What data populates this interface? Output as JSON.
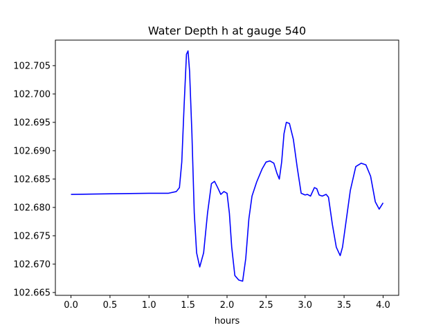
{
  "chart_data": {
    "type": "line",
    "title": "Water Depth h at gauge 540",
    "xlabel": "hours",
    "ylabel": "",
    "xlim": [
      -0.2,
      4.2
    ],
    "ylim": [
      102.6645,
      102.7095
    ],
    "x_ticks": [
      0.0,
      0.5,
      1.0,
      1.5,
      2.0,
      2.5,
      3.0,
      3.5,
      4.0
    ],
    "x_tick_labels": [
      "0.0",
      "0.5",
      "1.0",
      "1.5",
      "2.0",
      "2.5",
      "3.0",
      "3.5",
      "4.0"
    ],
    "y_ticks": [
      102.665,
      102.67,
      102.675,
      102.68,
      102.685,
      102.69,
      102.695,
      102.7,
      102.705
    ],
    "y_tick_labels": [
      "102.665",
      "102.670",
      "102.675",
      "102.680",
      "102.685",
      "102.690",
      "102.695",
      "102.700",
      "102.705"
    ],
    "grid": false,
    "series": [
      {
        "color": "#0000ff",
        "points": [
          [
            0.0,
            102.6823
          ],
          [
            0.5,
            102.6824
          ],
          [
            1.0,
            102.6825
          ],
          [
            1.25,
            102.6825
          ],
          [
            1.35,
            102.6828
          ],
          [
            1.39,
            102.6835
          ],
          [
            1.42,
            102.688
          ],
          [
            1.45,
            102.698
          ],
          [
            1.48,
            102.707
          ],
          [
            1.5,
            102.7076
          ],
          [
            1.52,
            102.704
          ],
          [
            1.55,
            102.693
          ],
          [
            1.58,
            102.679
          ],
          [
            1.61,
            102.672
          ],
          [
            1.65,
            102.6695
          ],
          [
            1.7,
            102.672
          ],
          [
            1.75,
            102.679
          ],
          [
            1.8,
            102.6842
          ],
          [
            1.84,
            102.6846
          ],
          [
            1.88,
            102.6835
          ],
          [
            1.92,
            102.6823
          ],
          [
            1.96,
            102.6828
          ],
          [
            2.0,
            102.6825
          ],
          [
            2.03,
            102.679
          ],
          [
            2.06,
            102.673
          ],
          [
            2.1,
            102.668
          ],
          [
            2.15,
            102.6672
          ],
          [
            2.2,
            102.667
          ],
          [
            2.24,
            102.671
          ],
          [
            2.28,
            102.678
          ],
          [
            2.32,
            102.682
          ],
          [
            2.38,
            102.6845
          ],
          [
            2.45,
            102.6868
          ],
          [
            2.5,
            102.688
          ],
          [
            2.55,
            102.6882
          ],
          [
            2.6,
            102.6878
          ],
          [
            2.64,
            102.686
          ],
          [
            2.67,
            102.685
          ],
          [
            2.7,
            102.688
          ],
          [
            2.73,
            102.693
          ],
          [
            2.76,
            102.695
          ],
          [
            2.8,
            102.6948
          ],
          [
            2.85,
            102.692
          ],
          [
            2.9,
            102.687
          ],
          [
            2.95,
            102.6825
          ],
          [
            3.0,
            102.6822
          ],
          [
            3.03,
            102.6823
          ],
          [
            3.07,
            102.682
          ],
          [
            3.12,
            102.6835
          ],
          [
            3.15,
            102.6833
          ],
          [
            3.18,
            102.6822
          ],
          [
            3.22,
            102.682
          ],
          [
            3.27,
            102.6823
          ],
          [
            3.3,
            102.6818
          ],
          [
            3.35,
            102.677
          ],
          [
            3.4,
            102.673
          ],
          [
            3.45,
            102.6715
          ],
          [
            3.48,
            102.673
          ],
          [
            3.52,
            102.677
          ],
          [
            3.58,
            102.683
          ],
          [
            3.65,
            102.6872
          ],
          [
            3.72,
            102.6878
          ],
          [
            3.78,
            102.6875
          ],
          [
            3.84,
            102.6855
          ],
          [
            3.9,
            102.681
          ],
          [
            3.95,
            102.6797
          ],
          [
            4.0,
            102.6808
          ]
        ]
      }
    ]
  }
}
